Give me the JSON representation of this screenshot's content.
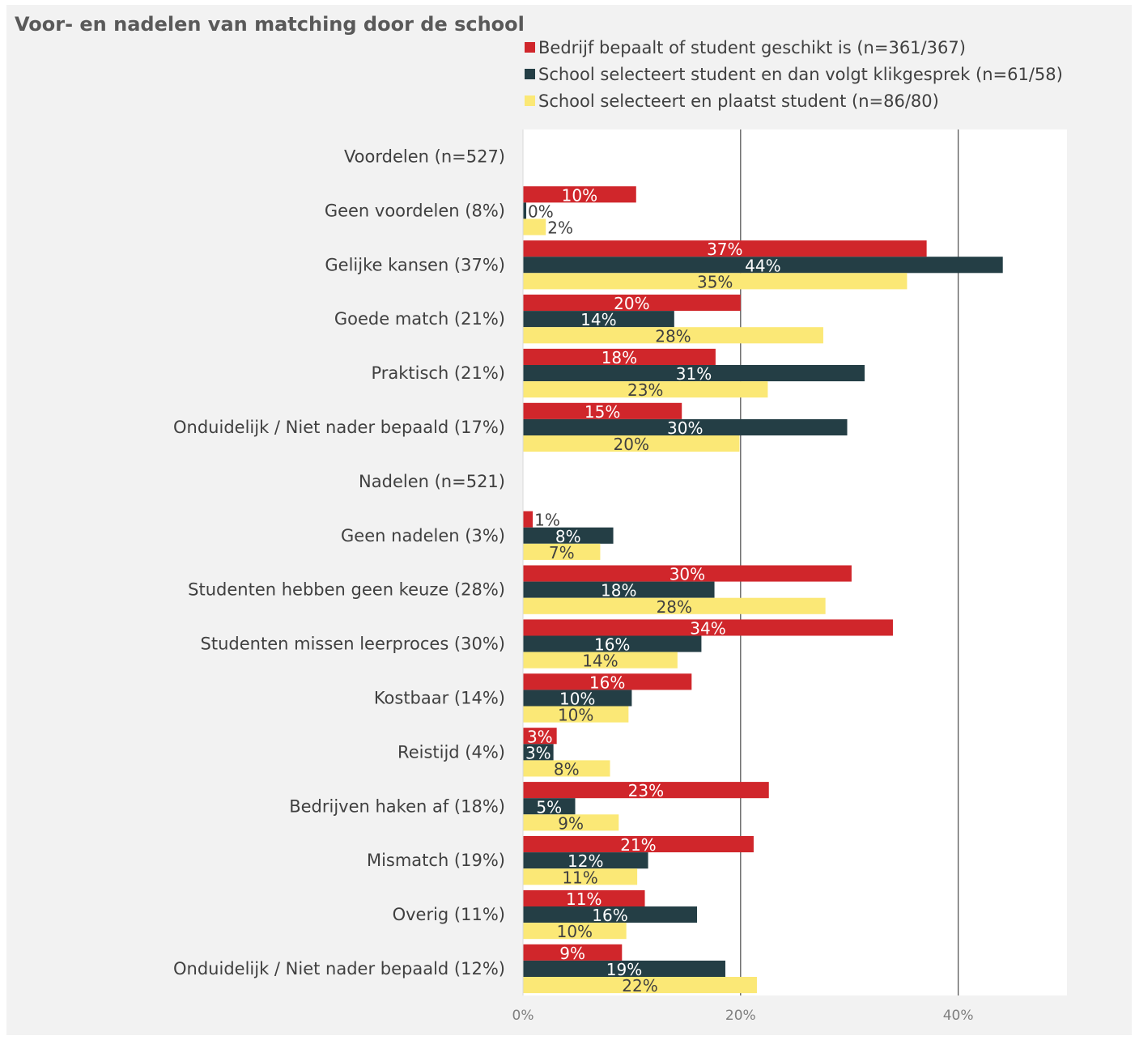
{
  "chart_data": {
    "type": "bar",
    "orientation": "horizontal",
    "title": "Voor- en nadelen van matching door de school",
    "categories": [
      "Voordelen (n=527)",
      "Geen voordelen (8%)",
      "Gelijke kansen (37%)",
      "Goede match (21%)",
      "Praktisch (21%)",
      "Onduidelijk / Niet nader bepaald (17%)",
      "Nadelen (n=521)",
      "Geen nadelen (3%)",
      "Studenten hebben geen keuze (28%)",
      "Studenten missen leerproces (30%)",
      "Kostbaar (14%)",
      "Reistijd (4%)",
      "Bedrijven haken af (18%)",
      "Mismatch (19%)",
      "Overig (11%)",
      "Onduidelijk / Niet nader bepaald (12%)"
    ],
    "series": [
      {
        "name": "Bedrijf bepaalt of student geschikt is (n=361/367)",
        "color": "#d0262b",
        "label_color": "#ffffff",
        "values": [
          null,
          10.4,
          37.1,
          20,
          17.7,
          14.6,
          null,
          0.9,
          30.2,
          34,
          15.5,
          3.1,
          22.6,
          21.2,
          11.2,
          9.1
        ],
        "labels": [
          "",
          "10%",
          "37%",
          "20%",
          "18%",
          "15%",
          "",
          "1%",
          "30%",
          "34%",
          "16%",
          "3%",
          "23%",
          "21%",
          "11%",
          "9%"
        ]
      },
      {
        "name": "School selecteert student en dan volgt klikgesprek (n=61/58)",
        "color": "#243e45",
        "label_color": "#ffffff",
        "values": [
          null,
          0.3,
          44.1,
          13.9,
          31.4,
          29.8,
          null,
          8.3,
          17.6,
          16.4,
          10,
          2.8,
          4.8,
          11.5,
          16,
          18.6
        ],
        "labels": [
          "",
          "0%",
          "44%",
          "14%",
          "31%",
          "30%",
          "",
          "8%",
          "18%",
          "16%",
          "10%",
          "3%",
          "5%",
          "12%",
          "16%",
          "19%"
        ]
      },
      {
        "name": "School selecteert en plaatst student (n=86/80)",
        "color": "#fbe876",
        "label_color": "#404040",
        "values": [
          null,
          2.1,
          35.3,
          27.6,
          22.5,
          19.9,
          null,
          7.1,
          27.8,
          14.2,
          9.7,
          8,
          8.8,
          10.5,
          9.5,
          21.5
        ],
        "labels": [
          "",
          "2%",
          "35%",
          "28%",
          "23%",
          "20%",
          "",
          "7%",
          "28%",
          "14%",
          "10%",
          "8%",
          "9%",
          "11%",
          "10%",
          "22%"
        ]
      }
    ],
    "x_ticks": [
      "0%",
      "20%",
      "40%"
    ],
    "xlim": [
      0,
      50
    ],
    "grid": true,
    "legend_position": "top"
  }
}
